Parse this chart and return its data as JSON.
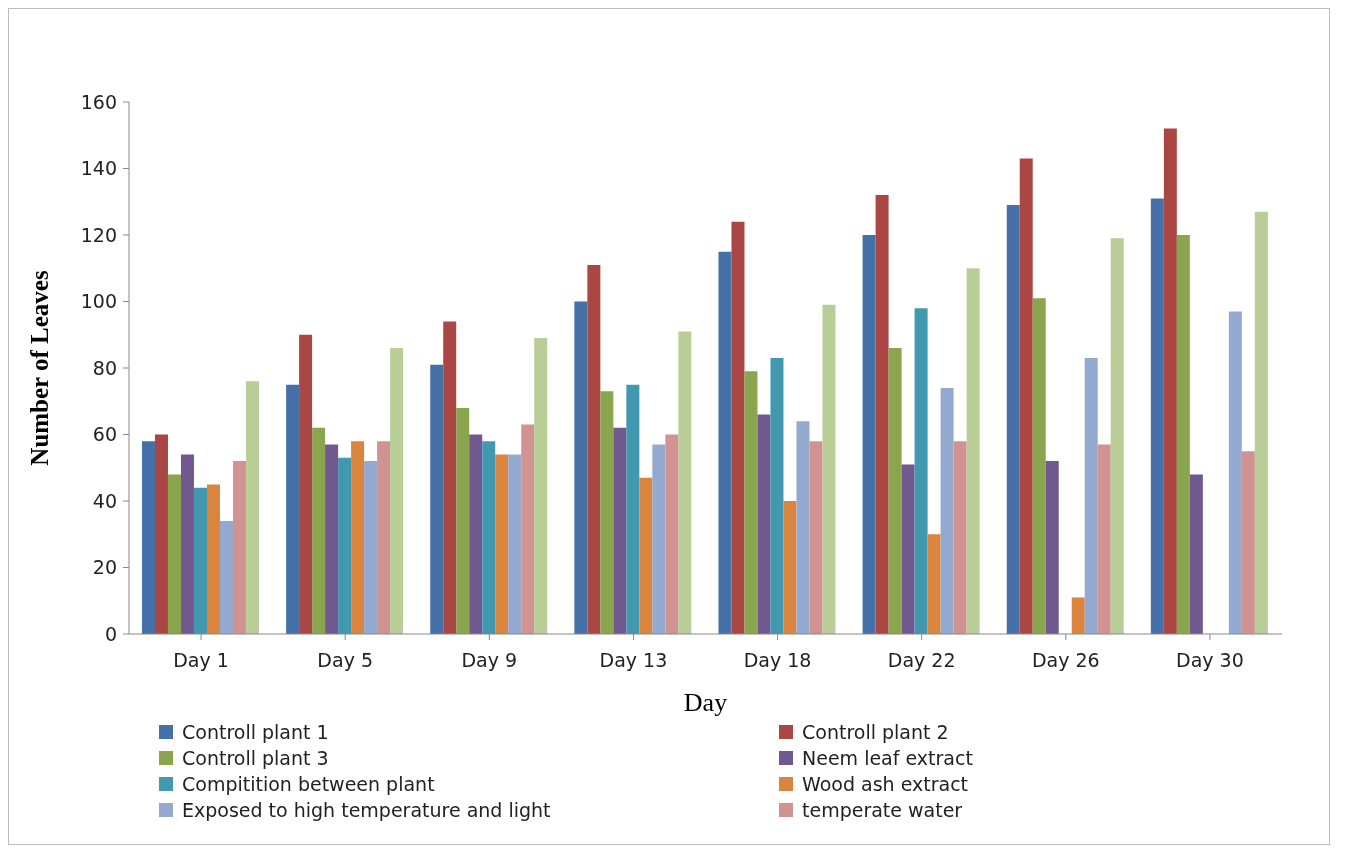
{
  "chart_data": {
    "type": "bar",
    "xlabel": "Day",
    "ylabel": "Number of Leaves",
    "categories": [
      "Day 1",
      "Day 5",
      "Day 9",
      "Day 13",
      "Day 18",
      "Day 22",
      "Day 26",
      "Day 30"
    ],
    "series": [
      {
        "name": "Controll plant 1",
        "color": "#4571a8",
        "values": [
          58,
          75,
          81,
          100,
          115,
          120,
          129,
          131
        ]
      },
      {
        "name": "Controll plant 2",
        "color": "#aa4744",
        "values": [
          60,
          90,
          94,
          111,
          124,
          132,
          143,
          152
        ]
      },
      {
        "name": "Controll plant 3",
        "color": "#89a54e",
        "values": [
          48,
          62,
          68,
          73,
          79,
          86,
          101,
          120
        ]
      },
      {
        "name": "Neem leaf extract",
        "color": "#71588f",
        "values": [
          54,
          57,
          60,
          62,
          66,
          51,
          52,
          48
        ]
      },
      {
        "name": "Compitition between plant",
        "color": "#4198af",
        "values": [
          44,
          53,
          58,
          75,
          83,
          98,
          null,
          null
        ]
      },
      {
        "name": "Wood ash extract",
        "color": "#db843d",
        "values": [
          45,
          58,
          54,
          47,
          40,
          30,
          11,
          null
        ]
      },
      {
        "name": "Exposed to high temperature and light",
        "color": "#93a9cf",
        "values": [
          34,
          52,
          54,
          57,
          64,
          74,
          83,
          97
        ]
      },
      {
        "name": "temperate water",
        "color": "#d19392",
        "values": [
          52,
          58,
          63,
          60,
          58,
          58,
          57,
          55
        ]
      },
      {
        "color": "#b9cd96",
        "values": [
          76,
          86,
          89,
          91,
          99,
          110,
          119,
          127
        ]
      }
    ],
    "ylim": [
      0,
      160
    ],
    "yticks": [
      0,
      20,
      40,
      60,
      80,
      100,
      120,
      140,
      160
    ],
    "grid": false,
    "legend": "bottom"
  }
}
